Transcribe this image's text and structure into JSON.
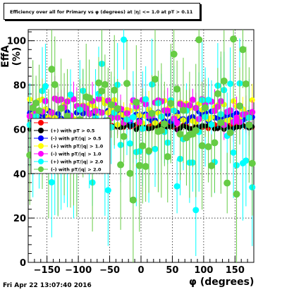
{
  "chart_data": {
    "type": "scatter",
    "title": "Efficiency over all for Primary vs φ (degrees) at |η| <= 1.0 at pT > 0.11",
    "xlabel": "φ (degrees)",
    "ylabel": "EffA (%)",
    "xlim": [
      -180,
      180
    ],
    "ylim": [
      0,
      105
    ],
    "xticks": [
      -150,
      -100,
      -50,
      0,
      50,
      100,
      150
    ],
    "yticks": [
      0,
      20,
      40,
      60,
      80,
      100
    ],
    "grid": true,
    "legend_position": "left-middle",
    "legend": [
      {
        "label": "",
        "color": "#ff0000"
      },
      {
        "label": "(+) with pT > 0.5",
        "color": "#000000"
      },
      {
        "label": "(-) with pT/|q| > 0.5",
        "color": "#0000ff"
      },
      {
        "label": "(+) with pT/|q| > 1.0",
        "color": "#ffff00"
      },
      {
        "label": "(-) with pT/|q| > 1.0",
        "color": "#ff00ff"
      },
      {
        "label": "(+) with pT/|q| > 2.0",
        "color": "#00ffff"
      },
      {
        "label": "(-) with pT/|q| > 2.0",
        "color": "#66cc44"
      }
    ],
    "series": [
      {
        "color": "#ff0000",
        "base": 61.5,
        "spread": 1.2,
        "err": 1.5,
        "size": 3.5
      },
      {
        "color": "#000000",
        "base": 61,
        "spread": 1.2,
        "err": 1.5,
        "size": 3.5
      },
      {
        "color": "#0000ff",
        "base": 66,
        "spread": 2.5,
        "err": 3,
        "size": 4
      },
      {
        "color": "#ffff00",
        "base": 68,
        "spread": 6,
        "err": 6,
        "size": 4
      },
      {
        "color": "#ff00ff",
        "base": 68,
        "spread": 6,
        "err": 7,
        "size": 4.5
      },
      {
        "color": "#00ffff",
        "base": 62,
        "spread": 20,
        "err": 18,
        "size": 4.5
      },
      {
        "color": "#66cc44",
        "base": 62,
        "spread": 22,
        "err": 22,
        "size": 5
      }
    ],
    "x_points_count": 72
  },
  "timestamp": "Fri Apr 22 13:07:40 2016"
}
